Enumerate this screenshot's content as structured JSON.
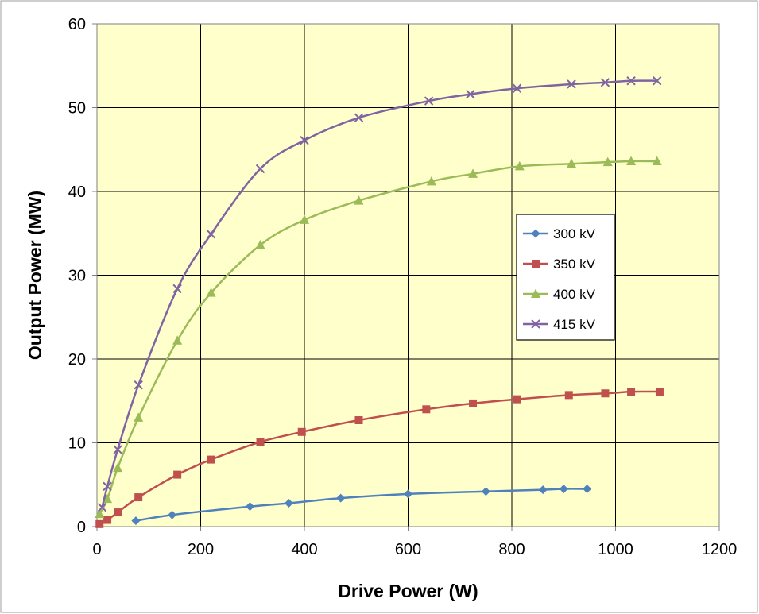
{
  "chart_data": {
    "type": "line",
    "xlabel": "Drive Power (W)",
    "ylabel": "Output Power (MW)",
    "xlim": [
      0,
      1200
    ],
    "ylim": [
      0,
      60
    ],
    "xticks": [
      0,
      200,
      400,
      600,
      800,
      1000,
      1200
    ],
    "yticks": [
      0,
      10,
      20,
      30,
      40,
      50,
      60
    ],
    "grid": true,
    "plot_background": "#FFFFCC",
    "legend_position": "right-center",
    "series": [
      {
        "name": "300 kV",
        "color": "#4F81BD",
        "marker": "diamond",
        "x": [
          75,
          145,
          295,
          370,
          470,
          600,
          750,
          860,
          900,
          945
        ],
        "y": [
          0.7,
          1.4,
          2.4,
          2.8,
          3.4,
          3.9,
          4.2,
          4.4,
          4.5,
          4.5
        ]
      },
      {
        "name": "350 kV",
        "color": "#C0504D",
        "marker": "square",
        "x": [
          5,
          20,
          40,
          80,
          155,
          220,
          315,
          395,
          505,
          635,
          725,
          810,
          910,
          980,
          1030,
          1085
        ],
        "y": [
          0.3,
          0.8,
          1.7,
          3.5,
          6.2,
          8.0,
          10.1,
          11.3,
          12.7,
          14.0,
          14.7,
          15.2,
          15.7,
          15.9,
          16.1,
          16.1
        ]
      },
      {
        "name": "400 kV",
        "color": "#9BBB59",
        "marker": "triangle",
        "x": [
          5,
          20,
          40,
          80,
          155,
          220,
          315,
          400,
          505,
          645,
          725,
          815,
          915,
          985,
          1030,
          1080
        ],
        "y": [
          1.5,
          3.3,
          7.0,
          13.0,
          22.2,
          27.9,
          33.6,
          36.6,
          38.9,
          41.2,
          42.1,
          43.0,
          43.3,
          43.5,
          43.6,
          43.6
        ]
      },
      {
        "name": "415 kV",
        "color": "#8064A2",
        "marker": "x",
        "x": [
          10,
          20,
          40,
          80,
          155,
          220,
          315,
          400,
          505,
          640,
          720,
          810,
          915,
          980,
          1030,
          1080
        ],
        "y": [
          2.3,
          4.8,
          9.2,
          16.9,
          28.4,
          34.9,
          42.7,
          46.1,
          48.8,
          50.8,
          51.6,
          52.3,
          52.8,
          53.0,
          53.2,
          53.2
        ]
      }
    ]
  }
}
